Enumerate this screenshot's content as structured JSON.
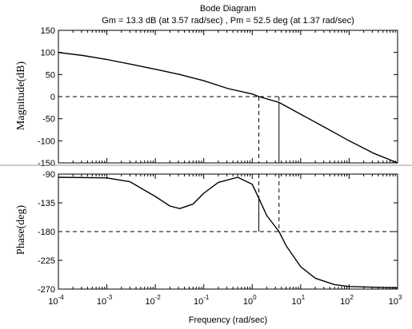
{
  "chart_data": {
    "type": "line",
    "title": "Bode Diagram",
    "subtitle": "Gm = 13.3 dB (at 3.57 rad/sec) ,  Pm = 52.5 deg (at 1.37 rad/sec)",
    "xlabel": "Frequency  (rad/sec)",
    "xscale": "log",
    "xlim": [
      0.0001,
      1000
    ],
    "x_ticks": [
      {
        "base": "10",
        "exp": "-4"
      },
      {
        "base": "10",
        "exp": "-3"
      },
      {
        "base": "10",
        "exp": "-2"
      },
      {
        "base": "10",
        "exp": "-1"
      },
      {
        "base": "10",
        "exp": "0"
      },
      {
        "base": "10",
        "exp": "1"
      },
      {
        "base": "10",
        "exp": "2"
      },
      {
        "base": "10",
        "exp": "3"
      }
    ],
    "gain_margin": {
      "value_db": 13.3,
      "frequency": 3.57
    },
    "phase_margin": {
      "value_deg": 52.5,
      "frequency": 1.37
    },
    "magnitude": {
      "ylabel": "Magnitude(dB)",
      "ylim": [
        -150,
        150
      ],
      "y_ticks": [
        "150",
        "100",
        "50",
        "0",
        "-50",
        "-100",
        "-150"
      ],
      "x": [
        0.0001,
        0.00032,
        0.001,
        0.0032,
        0.01,
        0.032,
        0.1,
        0.32,
        1,
        1.37,
        3.57,
        10,
        32,
        100,
        316,
        1000
      ],
      "y": [
        100,
        93,
        84,
        73,
        62,
        50,
        36,
        18,
        6,
        0,
        -13,
        -40,
        -70,
        -100,
        -128,
        -150
      ]
    },
    "phase": {
      "ylabel": "Phase(deg)",
      "ylim": [
        -270,
        -90
      ],
      "y_ticks": [
        "-90",
        "-135",
        "-180",
        "-225",
        "-270"
      ],
      "x": [
        0.0001,
        0.001,
        0.003,
        0.01,
        0.02,
        0.032,
        0.06,
        0.1,
        0.2,
        0.5,
        1,
        1.37,
        2,
        3.57,
        5,
        10,
        20,
        50,
        100,
        1000
      ],
      "y": [
        -95,
        -96,
        -102,
        -125,
        -140,
        -144,
        -137,
        -120,
        -103,
        -95,
        -106,
        -128,
        -155,
        -180,
        -202,
        -235,
        -253,
        -263,
        -266,
        -268
      ]
    },
    "grid": false,
    "reference_lines": {
      "magnitude_db": 0,
      "phase_deg": -180,
      "style": "dashed"
    }
  }
}
